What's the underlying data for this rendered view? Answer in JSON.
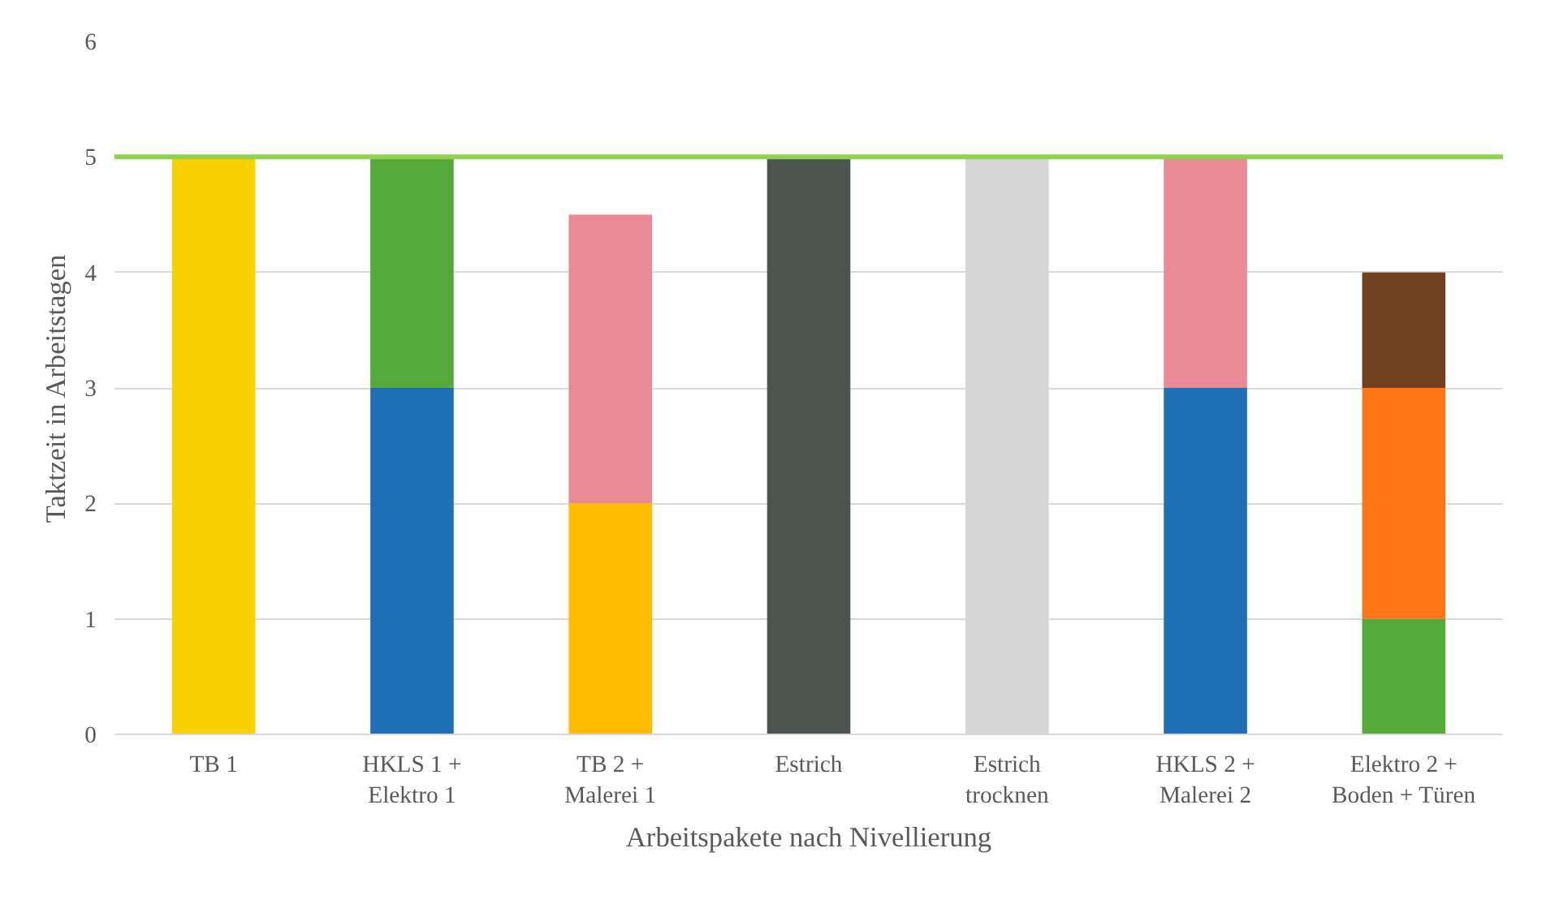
{
  "chart_data": {
    "type": "bar",
    "stacked": true,
    "xlabel": "Arbeitspakete nach Nivellierung",
    "ylabel": "Taktzeit in Arbeitstagen",
    "categories": [
      "TB 1",
      "HKLS 1 +\nElektro 1",
      "TB 2 +\nMalerei 1",
      "Estrich",
      "Estrich\ntrocknen",
      "HKLS 2 +\nMalerei 2",
      "Elektro 2 +\nBoden + Türen"
    ],
    "series": [
      {
        "values": [
          5,
          3,
          2,
          5,
          5,
          3,
          1
        ],
        "colors": [
          "#f9d000",
          "#1f6fb4",
          "#ffbb00",
          "#4c5450",
          "#d6d6d6",
          "#1f6fb4",
          "#55a83a"
        ]
      },
      {
        "values": [
          null,
          2,
          2.5,
          null,
          null,
          2,
          2
        ],
        "colors": [
          null,
          "#55a83a",
          "#ea8a97",
          null,
          null,
          "#ea8a97",
          "#ff7616"
        ]
      },
      {
        "values": [
          null,
          null,
          null,
          null,
          null,
          null,
          1
        ],
        "colors": [
          null,
          null,
          null,
          null,
          null,
          null,
          "#704020"
        ]
      }
    ],
    "ylim": [
      0,
      6
    ],
    "yticks": [
      0,
      1,
      2,
      3,
      4,
      5,
      6
    ],
    "grid": "y",
    "ref_lines": [
      {
        "axis": "y",
        "value": 5,
        "color": "#92d050"
      }
    ]
  }
}
